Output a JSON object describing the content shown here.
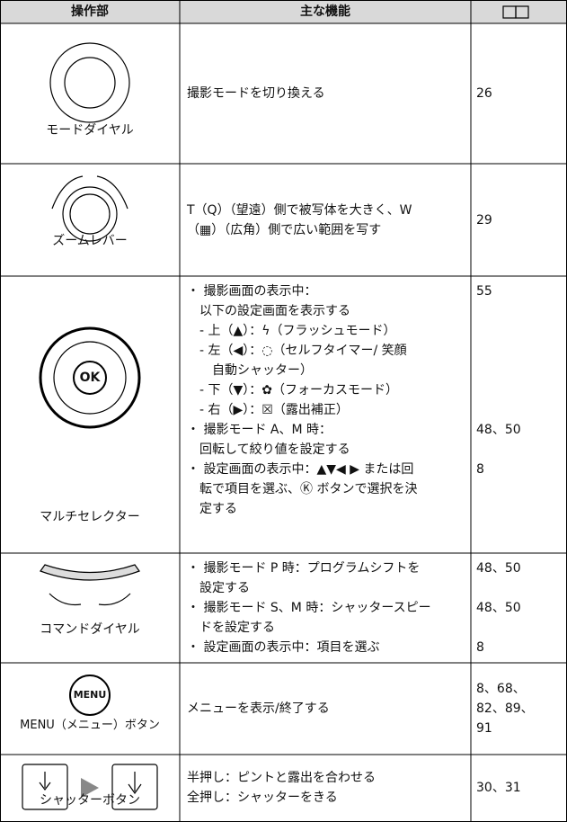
{
  "table": {
    "header": [
      "操作部",
      "主な機能"
    ],
    "rows": [
      {
        "label": "モードダイヤル",
        "items": [
          {
            "lines": [
              "撮影モードを切り換える"
            ],
            "pages": [
              "26"
            ]
          }
        ]
      },
      {
        "label": "ズームレバー",
        "items": [
          {
            "lines": [
              "T（Q）（望遠）側で被写体を大きく、W",
              "（▦）（広角）側で広い範囲を写す"
            ],
            "pages": [
              "29"
            ]
          }
        ]
      },
      {
        "label": "マルチセレクター",
        "icon_label": "OK",
        "items": [
          {
            "lines": [
              "・ 撮影画面の表示中：",
              "　以下の設定画面を表示する",
              "　- 上（▲）：ϟ（フラッシュモード）",
              "　- 左（◀）：◌（セルフタイマー/ 笑顔",
              "　　自動シャッター）",
              "　- 下（▼）：✿（フォーカスモード）",
              "　- 右（▶）：☒（露出補正）"
            ],
            "pages": [
              "55"
            ]
          },
          {
            "lines": [
              "・ 撮影モード A、M 時：",
              "　回転して絞り値を設定する"
            ],
            "pages": [
              "48、50"
            ]
          },
          {
            "lines": [
              "・ 設定画面の表示中：▲▼◀ ▶ または回",
              "　転で項目を選ぶ、Ⓚ ボタンで選択を決",
              "　定する"
            ],
            "pages": [
              "8"
            ]
          }
        ]
      },
      {
        "label": "コマンドダイヤル",
        "items": [
          {
            "lines": [
              "・ 撮影モード P 時：プログラムシフトを",
              "　設定する"
            ],
            "pages": [
              "48、50"
            ]
          },
          {
            "lines": [
              "・ 撮影モード S、M 時：シャッタースピー",
              "　ドを設定する"
            ],
            "pages": [
              "48、50"
            ]
          },
          {
            "lines": [
              "・ 設定画面の表示中：項目を選ぶ"
            ],
            "pages": [
              "8"
            ]
          }
        ]
      },
      {
        "label": "MENU（メニュー）ボタン",
        "icon_label": "MENU",
        "items": [
          {
            "lines": [
              "メニューを表示/終了する"
            ],
            "pages": [
              "8、68、",
              "82、89、",
              "91"
            ]
          }
        ]
      },
      {
        "label": "シャッターボタン",
        "items": [
          {
            "lines": [
              "半押し：ピントと露出を合わせる",
              "全押し：シャッターをきる"
            ],
            "pages": [
              "30、31"
            ]
          }
        ]
      }
    ]
  }
}
